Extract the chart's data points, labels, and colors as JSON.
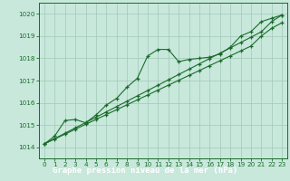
{
  "title": "Graphe pression niveau de la mer (hPa)",
  "bg_color": "#c8e8dc",
  "grid_color": "#a0c8b8",
  "line_color": "#1a6b2a",
  "label_bg": "#1a6b2a",
  "label_fg": "#ffffff",
  "x_ticks": [
    0,
    1,
    2,
    3,
    4,
    5,
    6,
    7,
    8,
    9,
    10,
    11,
    12,
    13,
    14,
    15,
    16,
    17,
    18,
    19,
    20,
    21,
    22,
    23
  ],
  "ylim": [
    1013.5,
    1020.5
  ],
  "yticks": [
    1014,
    1015,
    1016,
    1017,
    1018,
    1019,
    1020
  ],
  "y_main": [
    1014.15,
    1014.5,
    1015.2,
    1015.25,
    1015.1,
    1015.45,
    1015.9,
    1016.2,
    1016.7,
    1017.1,
    1018.1,
    1018.4,
    1018.4,
    1017.85,
    1017.95,
    1018.0,
    1018.05,
    1018.2,
    1018.5,
    1019.0,
    1019.2,
    1019.65,
    1019.8,
    1019.95
  ],
  "y_linear_hi": [
    1014.15,
    1014.39,
    1014.63,
    1014.87,
    1015.11,
    1015.35,
    1015.59,
    1015.83,
    1016.07,
    1016.31,
    1016.55,
    1016.79,
    1017.03,
    1017.27,
    1017.51,
    1017.75,
    1017.99,
    1018.23,
    1018.47,
    1018.71,
    1018.95,
    1019.19,
    1019.65,
    1019.95
  ],
  "y_linear_lo": [
    1014.15,
    1014.37,
    1014.59,
    1014.81,
    1015.03,
    1015.25,
    1015.47,
    1015.69,
    1015.91,
    1016.13,
    1016.35,
    1016.57,
    1016.79,
    1017.01,
    1017.23,
    1017.45,
    1017.67,
    1017.89,
    1018.11,
    1018.33,
    1018.55,
    1019.0,
    1019.35,
    1019.6
  ]
}
